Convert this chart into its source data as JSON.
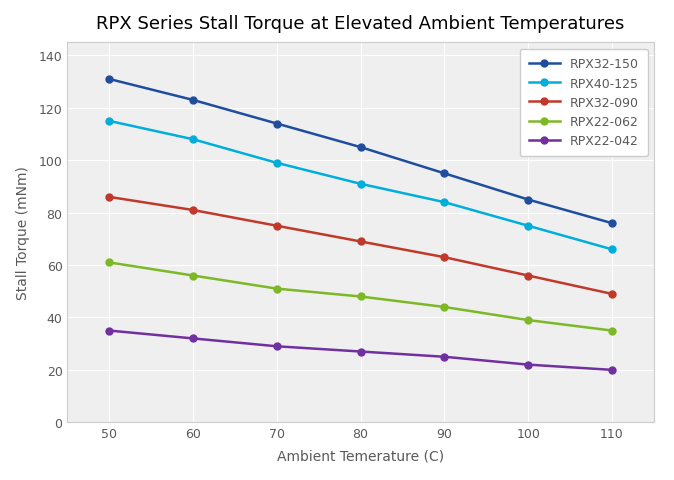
{
  "title": "RPX Series Stall Torque at Elevated Ambient Temperatures",
  "xlabel": "Ambient Temerature (C)",
  "ylabel": "Stall Torque (mNm)",
  "x": [
    50,
    60,
    70,
    80,
    90,
    100,
    110
  ],
  "series": [
    {
      "label": "RPX32-150",
      "color": "#1F4E9F",
      "y": [
        131,
        123,
        114,
        105,
        95,
        85,
        76
      ]
    },
    {
      "label": "RPX40-125",
      "color": "#00AEDB",
      "y": [
        115,
        108,
        99,
        91,
        84,
        75,
        66
      ]
    },
    {
      "label": "RPX32-090",
      "color": "#C0392B",
      "y": [
        86,
        81,
        75,
        69,
        63,
        56,
        49
      ]
    },
    {
      "label": "RPX22-062",
      "color": "#7DB827",
      "y": [
        61,
        56,
        51,
        48,
        44,
        39,
        35
      ]
    },
    {
      "label": "RPX22-042",
      "color": "#7030A0",
      "y": [
        35,
        32,
        29,
        27,
        25,
        22,
        20
      ]
    }
  ],
  "xlim": [
    45,
    115
  ],
  "ylim": [
    0,
    145
  ],
  "yticks": [
    0,
    20,
    40,
    60,
    80,
    100,
    120,
    140
  ],
  "xticks": [
    50,
    60,
    70,
    80,
    90,
    100,
    110
  ],
  "fig_bg_color": "#FFFFFF",
  "plot_bg_color": "#EFEFEF",
  "grid_color": "#FFFFFF",
  "title_fontsize": 13,
  "axis_label_fontsize": 10,
  "tick_fontsize": 9,
  "legend_fontsize": 9,
  "linewidth": 1.8,
  "markersize": 5,
  "label_color": "#595959",
  "tick_color": "#595959",
  "legend_text_color": "#595959"
}
